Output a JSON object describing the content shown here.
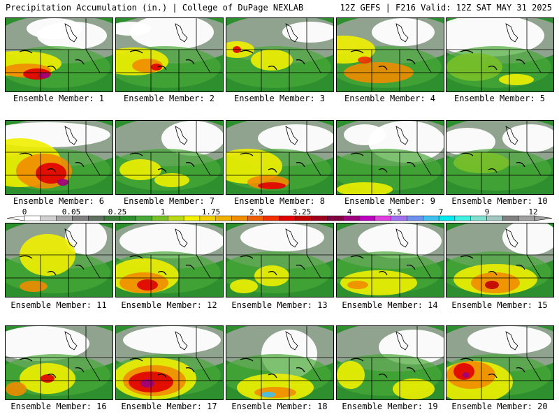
{
  "header": {
    "left": "Precipitation Accumulation (in.) | College of DuPage NEXLAB",
    "right": "12Z GEFS | F216 Valid: 12Z SAT MAY 31 2025"
  },
  "members": [
    {
      "label": "Ensemble Member: 1"
    },
    {
      "label": "Ensemble Member: 2"
    },
    {
      "label": "Ensemble Member: 3"
    },
    {
      "label": "Ensemble Member: 4"
    },
    {
      "label": "Ensemble Member: 5"
    },
    {
      "label": "Ensemble Member: 6"
    },
    {
      "label": "Ensemble Member: 7"
    },
    {
      "label": "Ensemble Member: 8"
    },
    {
      "label": "Ensemble Member: 9"
    },
    {
      "label": "Ensemble Member: 10"
    },
    {
      "label": "Ensemble Member: 11"
    },
    {
      "label": "Ensemble Member: 12"
    },
    {
      "label": "Ensemble Member: 13"
    },
    {
      "label": "Ensemble Member: 14"
    },
    {
      "label": "Ensemble Member: 15"
    },
    {
      "label": "Ensemble Member: 16"
    },
    {
      "label": "Ensemble Member: 17"
    },
    {
      "label": "Ensemble Member: 18"
    },
    {
      "label": "Ensemble Member: 19"
    },
    {
      "label": "Ensemble Member: 20"
    }
  ],
  "legend": {
    "labels": [
      "0",
      "0.05",
      "0.25",
      "1",
      "1.75",
      "2.5",
      "3.25",
      "4",
      "5.5",
      "7",
      "9",
      "12"
    ],
    "colors": [
      "#ffffff",
      "#d0d0d0",
      "#a8a8a8",
      "#808080",
      "#607060",
      "#3a7a3a",
      "#2e8f2e",
      "#48a838",
      "#78c028",
      "#b8d818",
      "#f0f000",
      "#f0d000",
      "#f0b000",
      "#f08c00",
      "#f06000",
      "#f03000",
      "#e00000",
      "#c00000",
      "#a00020",
      "#800040",
      "#a00080",
      "#c000c0",
      "#e040e0",
      "#a070f0",
      "#7090f0",
      "#40c0f0",
      "#00e8f0",
      "#40f0e0",
      "#80e0d0",
      "#a0c8c0",
      "#808080",
      "#a0a0a0"
    ]
  }
}
